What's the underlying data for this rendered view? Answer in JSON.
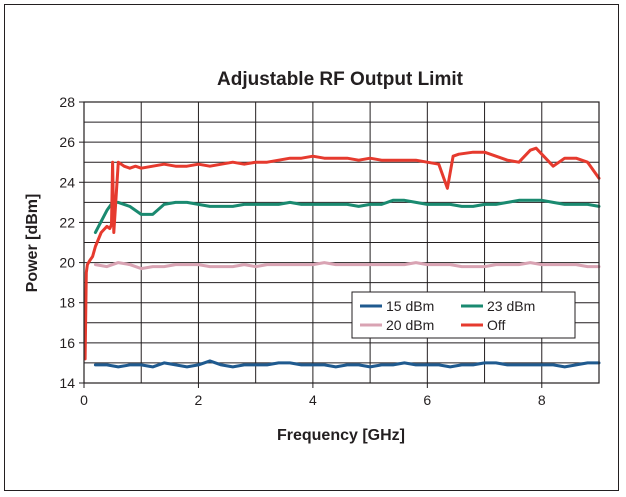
{
  "chart_data": {
    "type": "line",
    "title": "Adjustable RF Output Limit",
    "xlabel": "Frequency [GHz]",
    "ylabel": "Power [dBm]",
    "xlim": [
      0,
      9
    ],
    "ylim": [
      14,
      28
    ],
    "x_ticks": [
      0,
      2,
      4,
      6,
      8
    ],
    "y_ticks": [
      14,
      16,
      18,
      20,
      22,
      24,
      26,
      28
    ],
    "grid": true,
    "legend_position": "lower-right",
    "series": [
      {
        "name": "15 dBm",
        "color": "#1f5a8f",
        "x": [
          0.2,
          0.4,
          0.6,
          0.8,
          1.0,
          1.2,
          1.4,
          1.6,
          1.8,
          2.0,
          2.2,
          2.4,
          2.6,
          2.8,
          3.0,
          3.2,
          3.4,
          3.6,
          3.8,
          4.0,
          4.2,
          4.4,
          4.6,
          4.8,
          5.0,
          5.2,
          5.4,
          5.6,
          5.8,
          6.0,
          6.2,
          6.4,
          6.6,
          6.8,
          7.0,
          7.2,
          7.4,
          7.6,
          7.8,
          8.0,
          8.2,
          8.4,
          8.6,
          8.8,
          9.0
        ],
        "y": [
          14.9,
          14.9,
          14.8,
          14.9,
          14.9,
          14.8,
          15.0,
          14.9,
          14.8,
          14.9,
          15.1,
          14.9,
          14.8,
          14.9,
          14.9,
          14.9,
          15.0,
          15.0,
          14.9,
          14.9,
          14.9,
          14.8,
          14.9,
          14.9,
          14.8,
          14.9,
          14.9,
          15.0,
          14.9,
          14.9,
          14.9,
          14.8,
          14.9,
          14.9,
          15.0,
          15.0,
          14.9,
          14.9,
          14.9,
          14.9,
          14.9,
          14.8,
          14.9,
          15.0,
          15.0
        ]
      },
      {
        "name": "20 dBm",
        "color": "#d9a3b3",
        "x": [
          0.2,
          0.4,
          0.6,
          0.8,
          1.0,
          1.2,
          1.4,
          1.6,
          1.8,
          2.0,
          2.2,
          2.4,
          2.6,
          2.8,
          3.0,
          3.2,
          3.4,
          3.6,
          3.8,
          4.0,
          4.2,
          4.4,
          4.6,
          4.8,
          5.0,
          5.2,
          5.4,
          5.6,
          5.8,
          6.0,
          6.2,
          6.4,
          6.6,
          6.8,
          7.0,
          7.2,
          7.4,
          7.6,
          7.8,
          8.0,
          8.2,
          8.4,
          8.6,
          8.8,
          9.0
        ],
        "y": [
          19.9,
          19.8,
          20.0,
          19.9,
          19.7,
          19.8,
          19.8,
          19.9,
          19.9,
          19.9,
          19.8,
          19.8,
          19.8,
          19.9,
          19.8,
          19.9,
          19.9,
          19.9,
          19.9,
          19.9,
          20.0,
          19.9,
          19.9,
          19.9,
          19.9,
          19.9,
          19.9,
          19.9,
          20.0,
          19.9,
          19.9,
          19.9,
          19.8,
          19.8,
          19.8,
          19.9,
          19.9,
          19.9,
          20.0,
          19.9,
          19.9,
          19.9,
          19.9,
          19.8,
          19.8
        ]
      },
      {
        "name": "23 dBm",
        "color": "#1a8a70",
        "x": [
          0.2,
          0.4,
          0.5,
          0.6,
          0.8,
          1.0,
          1.2,
          1.4,
          1.6,
          1.8,
          2.0,
          2.2,
          2.4,
          2.6,
          2.8,
          3.0,
          3.2,
          3.4,
          3.6,
          3.8,
          4.0,
          4.2,
          4.4,
          4.6,
          4.8,
          5.0,
          5.2,
          5.4,
          5.6,
          5.8,
          6.0,
          6.2,
          6.4,
          6.6,
          6.8,
          7.0,
          7.2,
          7.4,
          7.6,
          7.8,
          8.0,
          8.2,
          8.4,
          8.6,
          8.8,
          9.0
        ],
        "y": [
          21.5,
          22.6,
          23.0,
          23.0,
          22.8,
          22.4,
          22.4,
          22.9,
          23.0,
          23.0,
          22.9,
          22.8,
          22.8,
          22.8,
          22.9,
          22.9,
          22.9,
          22.9,
          23.0,
          22.9,
          22.9,
          22.9,
          22.9,
          22.9,
          22.8,
          22.9,
          22.9,
          23.1,
          23.1,
          23.0,
          22.9,
          22.9,
          22.9,
          22.8,
          22.8,
          22.9,
          22.9,
          23.0,
          23.1,
          23.1,
          23.1,
          23.0,
          22.9,
          22.9,
          22.9,
          22.8
        ]
      },
      {
        "name": "Off",
        "color": "#e63a2e",
        "x": [
          0.02,
          0.04,
          0.06,
          0.1,
          0.15,
          0.2,
          0.3,
          0.4,
          0.45,
          0.48,
          0.5,
          0.52,
          0.6,
          0.7,
          0.8,
          0.9,
          1.0,
          1.2,
          1.4,
          1.6,
          1.8,
          2.0,
          2.2,
          2.4,
          2.6,
          2.8,
          3.0,
          3.2,
          3.4,
          3.6,
          3.8,
          4.0,
          4.2,
          4.4,
          4.6,
          4.8,
          5.0,
          5.2,
          5.4,
          5.6,
          5.8,
          6.0,
          6.2,
          6.35,
          6.45,
          6.55,
          6.8,
          7.0,
          7.2,
          7.4,
          7.6,
          7.8,
          7.9,
          8.0,
          8.2,
          8.4,
          8.6,
          8.8,
          9.0
        ],
        "y": [
          15.2,
          19.5,
          19.9,
          20.1,
          20.3,
          20.8,
          21.5,
          21.8,
          21.7,
          21.9,
          25.0,
          21.5,
          25.0,
          24.8,
          24.7,
          24.8,
          24.7,
          24.8,
          24.9,
          24.8,
          24.8,
          24.9,
          24.8,
          24.9,
          25.0,
          24.9,
          25.0,
          25.0,
          25.1,
          25.2,
          25.2,
          25.3,
          25.2,
          25.2,
          25.2,
          25.1,
          25.2,
          25.1,
          25.1,
          25.1,
          25.1,
          25.0,
          24.9,
          23.7,
          25.3,
          25.4,
          25.5,
          25.5,
          25.3,
          25.1,
          25.0,
          25.6,
          25.7,
          25.4,
          24.8,
          25.2,
          25.2,
          25.0,
          24.2
        ]
      }
    ]
  }
}
